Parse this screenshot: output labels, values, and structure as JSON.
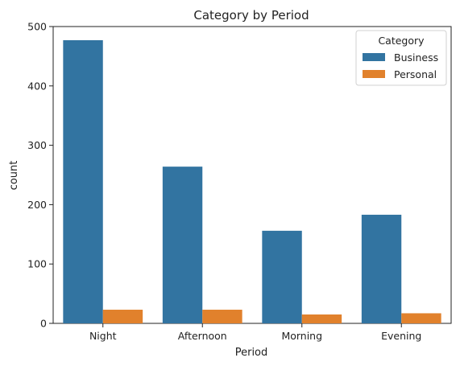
{
  "chart_data": {
    "type": "bar",
    "title": "Category by Period",
    "xlabel": "Period",
    "ylabel": "count",
    "categories": [
      "Night",
      "Afternoon",
      "Morning",
      "Evening"
    ],
    "series": [
      {
        "name": "Business",
        "values": [
          477,
          264,
          156,
          183
        ],
        "color": "#3274a1"
      },
      {
        "name": "Personal",
        "values": [
          23,
          23,
          15,
          17
        ],
        "color": "#e1812c"
      }
    ],
    "ylim": [
      0,
      500
    ],
    "yticks": [
      0,
      100,
      200,
      300,
      400,
      500
    ],
    "legend": {
      "title": "Category",
      "placement": "top-right"
    },
    "grid": false
  }
}
